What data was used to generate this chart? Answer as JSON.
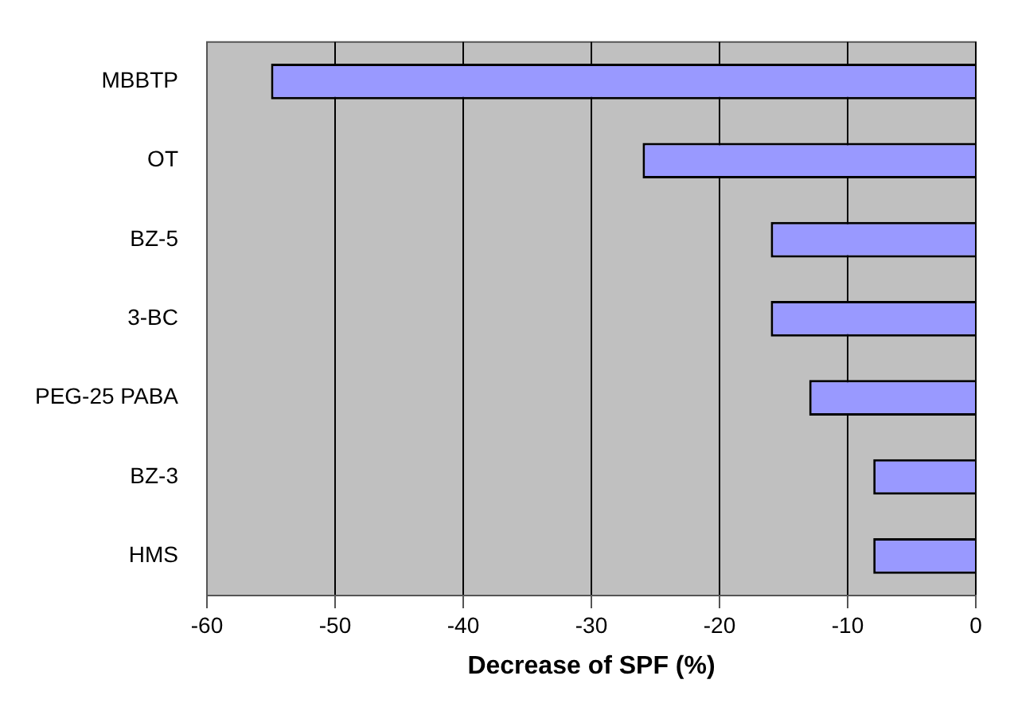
{
  "chart_data": {
    "type": "bar",
    "orientation": "horizontal",
    "xlabel": "Decrease of SPF (%)",
    "categories": [
      "MBBTP",
      "OT",
      "BZ-5",
      "3-BC",
      "PEG-25 PABA",
      "BZ-3",
      "HMS"
    ],
    "values": [
      -55,
      -26,
      -16,
      -16,
      -13,
      -8,
      -8
    ],
    "color": "#9999ff",
    "xlim": [
      -60,
      0
    ],
    "xticks": [
      -60,
      -50,
      -40,
      -30,
      -20,
      -10,
      0
    ],
    "grid": "x"
  }
}
